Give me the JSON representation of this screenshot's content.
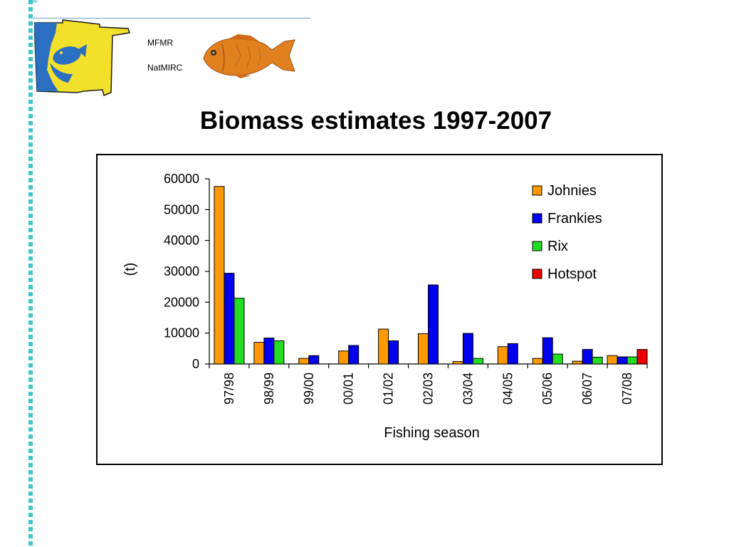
{
  "header": {
    "org_line1": "MFMR",
    "org_line2": "NatMIRC"
  },
  "page": {
    "title": "Biomass estimates 1997-2007"
  },
  "colors": {
    "border_dots": "#40c8c8",
    "Johnies": "#ff9900",
    "Frankies": "#0000ee",
    "Rix": "#22dd22",
    "Hotspot": "#ee0000"
  },
  "chart_data": {
    "type": "bar",
    "title": "",
    "xlabel": "Fishing season",
    "ylabel": "(t)",
    "ylim": [
      0,
      60000
    ],
    "yticks": [
      "0",
      "10000",
      "20000",
      "30000",
      "40000",
      "50000",
      "60000"
    ],
    "legend_position": "top-right",
    "grid": false,
    "categories": [
      "97/98",
      "98/99",
      "99/00",
      "00/01",
      "01/02",
      "02/03",
      "03/04",
      "04/05",
      "05/06",
      "06/07",
      "07/08"
    ],
    "series": [
      {
        "name": "Johnies",
        "values": [
          57500,
          7000,
          1800,
          4200,
          11300,
          9800,
          800,
          5600,
          1800,
          900,
          2700
        ]
      },
      {
        "name": "Frankies",
        "values": [
          29400,
          8400,
          2700,
          6000,
          7500,
          25600,
          9900,
          6600,
          8500,
          4700,
          2300
        ]
      },
      {
        "name": "Rix",
        "values": [
          21300,
          7500,
          0,
          0,
          0,
          0,
          1800,
          0,
          3200,
          2200,
          2300
        ]
      },
      {
        "name": "Hotspot",
        "values": [
          0,
          0,
          0,
          0,
          0,
          0,
          0,
          0,
          0,
          0,
          4700
        ]
      }
    ]
  }
}
